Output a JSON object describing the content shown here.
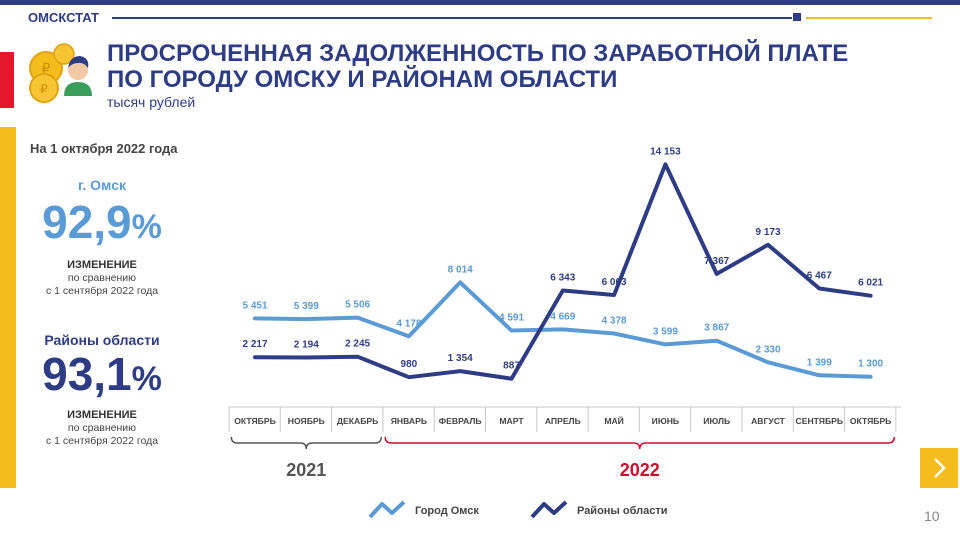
{
  "header": {
    "brand": "ОМСКСТАТ",
    "title_line1": "ПРОСРОЧЕННАЯ ЗАДОЛЖЕННОСТЬ ПО ЗАРАБОТНОЙ ПЛАТЕ",
    "title_line2": "ПО ГОРОДУ ОМСКУ И РАЙОНАМ ОБЛАСТИ",
    "subtitle": "тысяч рублей"
  },
  "sidebar": {
    "date_heading": "На 1 октября 2022 года",
    "omsk": {
      "label": "г. Омск",
      "value": "92,9",
      "unit": "%",
      "note_title": "ИЗМЕНЕНИЕ",
      "note_line1": "по сравнению",
      "note_line2": "с 1 сентября 2022 года"
    },
    "regions": {
      "label": "Районы области",
      "value": "93,1",
      "unit": "%",
      "note_title": "ИЗМЕНЕНИЕ",
      "note_line1": "по сравнению",
      "note_line2": "с 1 сентября 2022 года"
    }
  },
  "colors": {
    "brand_dark": "#2e3d83",
    "omsk_line": "#5b9bd5",
    "accent_red": "#e4172b",
    "accent_yellow": "#f4bd1c",
    "year_2021": "#555555",
    "year_2022": "#c8102e"
  },
  "chart_data": {
    "type": "line",
    "categories": [
      "ОКТЯБРЬ",
      "НОЯБРЬ",
      "ДЕКАБРЬ",
      "ЯНВАРЬ",
      "ФЕВРАЛЬ",
      "МАРТ",
      "АПРЕЛЬ",
      "МАЙ",
      "ИЮНЬ",
      "ИЮЛЬ",
      "АВГУСТ",
      "СЕНТЯБРЬ",
      "ОКТЯБРЬ"
    ],
    "year_groups": [
      {
        "label": "2021",
        "from": 0,
        "to": 2
      },
      {
        "label": "2022",
        "from": 3,
        "to": 12
      }
    ],
    "series": [
      {
        "name": "Город Омск",
        "color": "#5b9bd5",
        "values": [
          5451,
          5399,
          5506,
          4178,
          8014,
          4591,
          4669,
          4378,
          3599,
          3867,
          2330,
          1399,
          1300
        ],
        "labels": [
          "5 451",
          "5 399",
          "5 506",
          "4 178",
          "8 014",
          "4 591",
          "4 669",
          "4 378",
          "3 599",
          "3 867",
          "2 330",
          "1 399",
          "1 300"
        ]
      },
      {
        "name": "Районы области",
        "color": "#2e3d83",
        "values": [
          2217,
          2194,
          2245,
          980,
          1354,
          887,
          6343,
          6063,
          14153,
          7367,
          9173,
          6467,
          6021
        ],
        "labels": [
          "2 217",
          "2 194",
          "2 245",
          "980",
          "1 354",
          "887",
          "6 343",
          "6 063",
          "14 153",
          "7 367",
          "9 173",
          "6 467",
          "6 021"
        ]
      }
    ],
    "legend_position": "bottom-center",
    "grid": false
  },
  "footer": {
    "page_number": "10",
    "next_icon": "chevron-right-icon"
  }
}
